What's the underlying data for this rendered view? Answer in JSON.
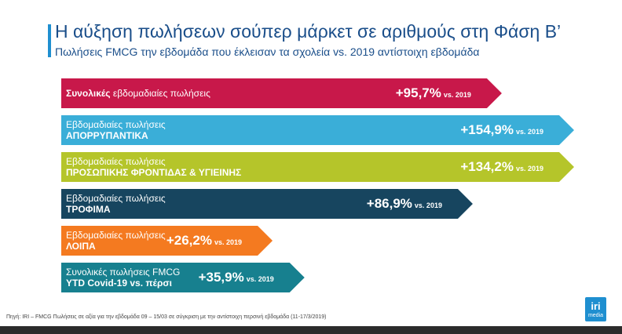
{
  "header": {
    "title": "Η αύξηση πωλήσεων σούπερ μάρκετ σε αριθμούς στη Φάση Β’",
    "subtitle": "Πωλήσεις FMCG την εβδομάδα που έκλεισαν τα σχολεία vs. 2019 αντίστοιχη εβδομάδα"
  },
  "chart_data": {
    "type": "bar",
    "title": "Η αύξηση πωλήσεων σούπερ μάρκετ σε αριθμούς στη Φάση Β’",
    "subtitle": "Πωλήσεις FMCG την εβδομάδα που έκλεισαν τα σχολεία vs. 2019 αντίστοιχη εβδομάδα",
    "orientation": "horizontal",
    "value_unit": "%",
    "comparison": "vs. 2019",
    "categories": [
      "Συνολικές εβδομαδιαίες πωλήσεις",
      "Εβδομαδιαίες πωλήσεις ΑΠΟΡΡΥΠΑΝΤΙΚΑ",
      "Εβδομαδιαίες πωλήσεις ΠΡΟΣΩΠΙΚΗΣ ΦΡΟΝΤΙΔΑΣ & ΥΓΙΕΙΝΗΣ",
      "Εβδομαδιαίες πωλήσεις ΤΡΟΦΙΜΑ",
      "Εβδομαδιαίες πωλήσεις ΛΟΙΠΑ",
      "Συνολικές πωλήσεις FMCG YTD Covid-19 vs. πέρσι"
    ],
    "values": [
      95.7,
      154.9,
      134.2,
      86.9,
      26.2,
      35.9
    ],
    "bars": [
      {
        "label_line1_bold": "Συνολικές",
        "label_line1": " εβδομαδιαίες πωλήσεις",
        "label_line2": "",
        "value_text": "+95,7%",
        "vs_text": "vs. 2019",
        "color": "#c8184a"
      },
      {
        "label_line1_bold": "",
        "label_line1": "Εβδομαδιαίες πωλήσεις",
        "label_line2": "ΑΠΟΡΡΥΠΑΝΤΙΚΑ",
        "value_text": "+154,9%",
        "vs_text": "vs. 2019",
        "color": "#3aaed8"
      },
      {
        "label_line1_bold": "",
        "label_line1": "Εβδομαδιαίες πωλήσεις",
        "label_line2": "ΠΡΟΣΩΠΙΚΗΣ ΦΡΟΝΤΙΔΑΣ & ΥΓΙΕΙΝΗΣ",
        "value_text": "+134,2%",
        "vs_text": "vs. 2019",
        "color": "#b5c52a"
      },
      {
        "label_line1_bold": "",
        "label_line1": "Εβδομαδιαίες πωλήσεις",
        "label_line2": "ΤΡΟΦΙΜΑ",
        "value_text": "+86,9%",
        "vs_text": "vs. 2019",
        "color": "#17455f"
      },
      {
        "label_line1_bold": "",
        "label_line1": "Εβδομαδιαίες πωλήσεις",
        "label_line2": "ΛΟΙΠΑ",
        "value_text": "+26,2%",
        "vs_text": "vs. 2019",
        "color": "#f47a20"
      },
      {
        "label_line1_bold": "",
        "label_line1": "Συνολικές πωλήσεις FMCG",
        "label_line2": "YTD Covid-19 vs. πέρσι",
        "value_text": "+35,9%",
        "vs_text": "vs. 2019",
        "color": "#17808f"
      }
    ]
  },
  "footer": {
    "source": "Πηγή: IRI – FMCG Πωλήσεις σε αξία για την εβδομάδα 09 – 15/03 σε σύγκριση με την αντίστοιχη περσινή εβδομάδα (11-17/3/2019)"
  },
  "logo": {
    "line1": "iri",
    "line2": "media"
  },
  "colors": {
    "title": "#1a4e8a",
    "accent": "#1f8fd0"
  }
}
